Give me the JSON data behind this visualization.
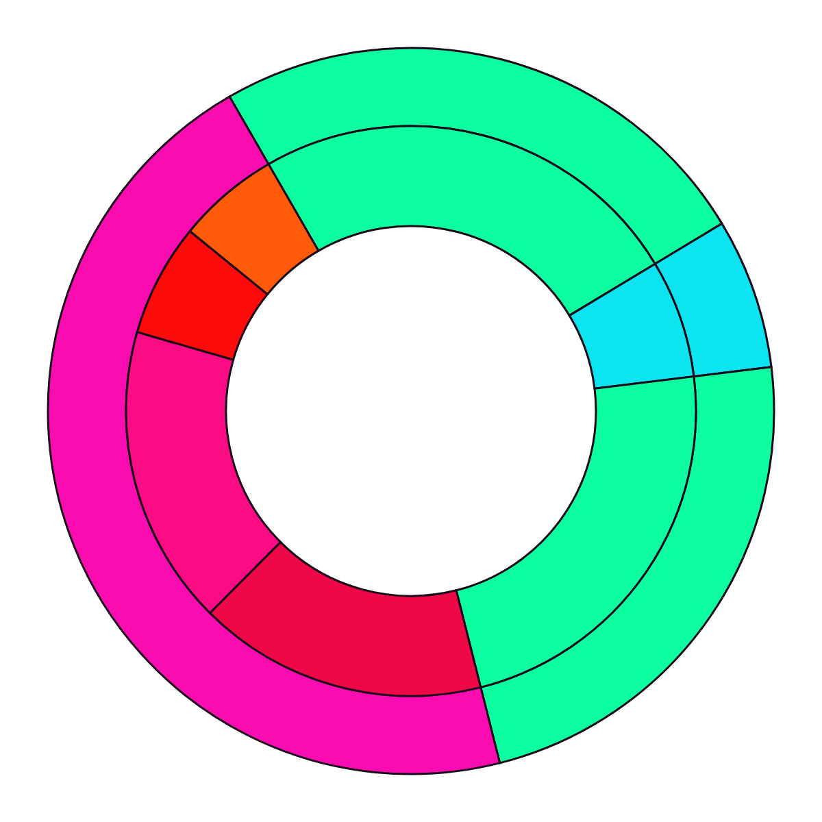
{
  "chart_data": {
    "type": "donut",
    "series": [
      {
        "values": [
          24.7,
          6.7,
          23.0,
          45.6
        ],
        "colors": [
          "#0cfea0",
          "#0ce4f2",
          "#0cfea0",
          "#fb0cb0"
        ]
      },
      {
        "values": [
          24.7,
          6.7,
          23.0,
          16.4,
          17.0,
          6.4,
          5.8
        ],
        "colors": [
          "#0cfea0",
          "#0ce4f2",
          "#0cfea0",
          "#ee0848",
          "#fb0c84",
          "#fe0a0a",
          "#fe5a0a"
        ]
      }
    ]
  }
}
